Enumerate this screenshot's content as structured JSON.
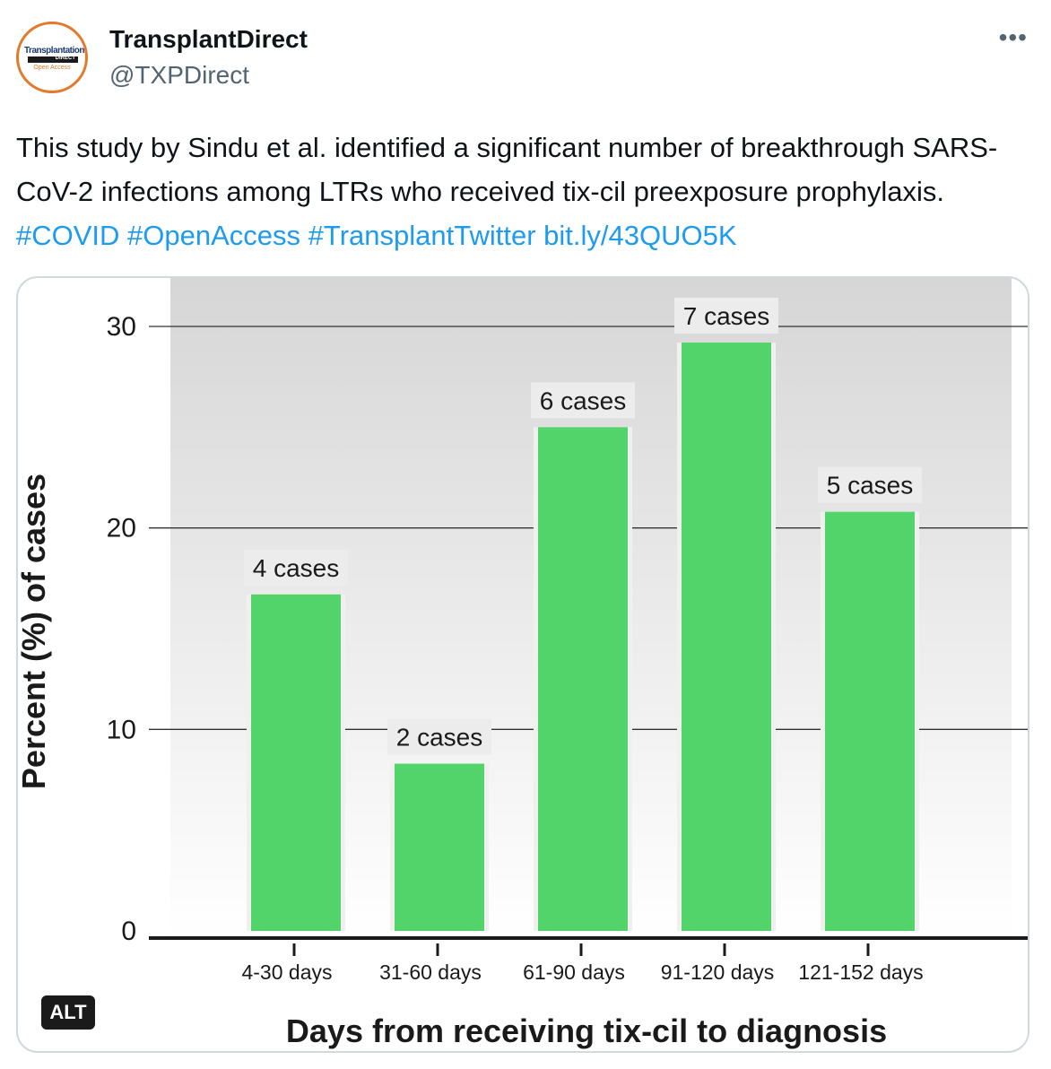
{
  "account": {
    "name": "TransplantDirect",
    "handle": "@TXPDirect",
    "avatar_text_top": "Transplantation",
    "avatar_text_mid": "DIRECT",
    "avatar_text_bottom": "Open Access"
  },
  "more_icon": "more-horizontal-icon",
  "tweet": {
    "text": "This study by Sindu et al. identified a significant number of breakthrough SARS-CoV-2 infections among LTRs who received tix-cil preexposure prophylaxis.",
    "hashtags": [
      "#COVID",
      "#OpenAccess",
      "#TransplantTwitter"
    ],
    "link": "bit.ly/43QUO5K"
  },
  "media": {
    "alt_badge": "ALT"
  },
  "colors": {
    "bar": "#52d46b",
    "link": "#1d9bf0",
    "avatar_ring": "#e3792b"
  },
  "chart_data": {
    "type": "bar",
    "categories": [
      "4-30 days",
      "31-60 days",
      "61-90 days",
      "91-120 days",
      "121-152 days"
    ],
    "values": [
      16.7,
      8.3,
      25.0,
      29.2,
      20.8
    ],
    "data_labels": [
      "4 cases",
      "2 cases",
      "6 cases",
      "7 cases",
      "5 cases"
    ],
    "xlabel": "Days from receiving tix-cil to diagnosis",
    "ylabel": "Percent (%) of cases",
    "yticks": [
      0,
      10,
      20,
      30
    ],
    "ylim": [
      0,
      30
    ],
    "grid": true
  }
}
